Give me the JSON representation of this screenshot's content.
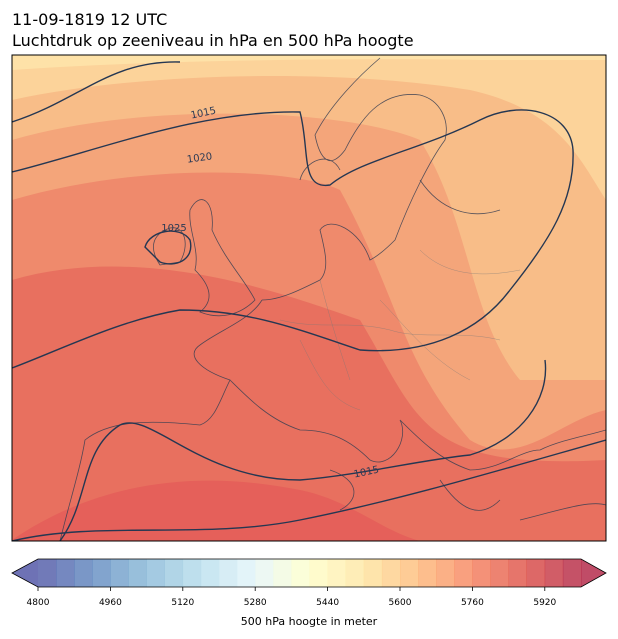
{
  "header": {
    "date": "11-09-1819 12 UTC",
    "title": "Luchtdruk op zeeniveau in hPa en 500 hPa hoogte"
  },
  "map": {
    "contour_labels": [
      1015,
      1020,
      1025,
      1015
    ]
  },
  "colorbar": {
    "label": "500 hPa hoogte in meter",
    "clim": [
      4800,
      6000
    ],
    "levels": [
      4800,
      4840,
      4880,
      4920,
      4960,
      5000,
      5040,
      5080,
      5120,
      5160,
      5200,
      5240,
      5280,
      5320,
      5360,
      5400,
      5440,
      5480,
      5520,
      5560,
      5600,
      5640,
      5680,
      5720,
      5760,
      5800,
      5840,
      5880,
      5920,
      5960,
      6000
    ],
    "ticks": [
      4800,
      4960,
      5120,
      5280,
      5440,
      5600,
      5760,
      5920
    ],
    "colormap": [
      "#313695",
      "#4575b4",
      "#74add1",
      "#abd9e9",
      "#e0f3f8",
      "#ffffbf",
      "#fee090",
      "#fdae61",
      "#f46d43",
      "#d73027",
      "#a50026"
    ]
  }
}
